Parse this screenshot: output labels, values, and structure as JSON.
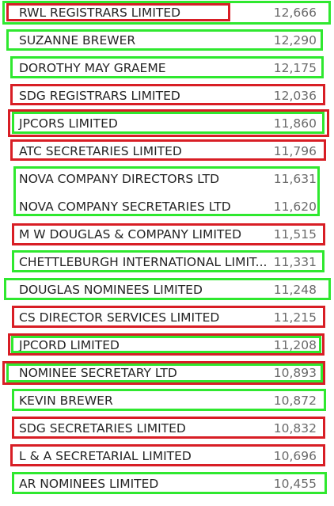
{
  "list": {
    "items": [
      {
        "name": "RWL REGISTRARS LIMITED",
        "count": "12,666"
      },
      {
        "name": "SUZANNE BREWER",
        "count": "12,290"
      },
      {
        "name": "DOROTHY MAY GRAEME",
        "count": "12,175"
      },
      {
        "name": "SDG REGISTRARS LIMITED",
        "count": "12,036"
      },
      {
        "name": "JPCORS LIMITED",
        "count": "11,860"
      },
      {
        "name": "ATC SECRETARIES LIMITED",
        "count": "11,796"
      },
      {
        "name": "NOVA COMPANY DIRECTORS LTD",
        "count": "11,631"
      },
      {
        "name": "NOVA COMPANY SECRETARIES LTD",
        "count": "11,620"
      },
      {
        "name": "M W DOUGLAS & COMPANY LIMITED",
        "count": "11,515"
      },
      {
        "name": "CHETTLEBURGH INTERNATIONAL LIMIT...",
        "count": "11,331"
      },
      {
        "name": "DOUGLAS NOMINEES LIMITED",
        "count": "11,248"
      },
      {
        "name": "CS DIRECTOR SERVICES LIMITED",
        "count": "11,215"
      },
      {
        "name": "JPCORD LIMITED",
        "count": "11,208"
      },
      {
        "name": "NOMINEE SECRETARY LTD",
        "count": "10,893"
      },
      {
        "name": "KEVIN BREWER",
        "count": "10,872"
      },
      {
        "name": "SDG SECRETARIES LIMITED",
        "count": "10,832"
      },
      {
        "name": "L & A SECRETARIAL LIMITED",
        "count": "10,696"
      },
      {
        "name": "AR NOMINEES LIMITED",
        "count": "10,455"
      }
    ]
  }
}
